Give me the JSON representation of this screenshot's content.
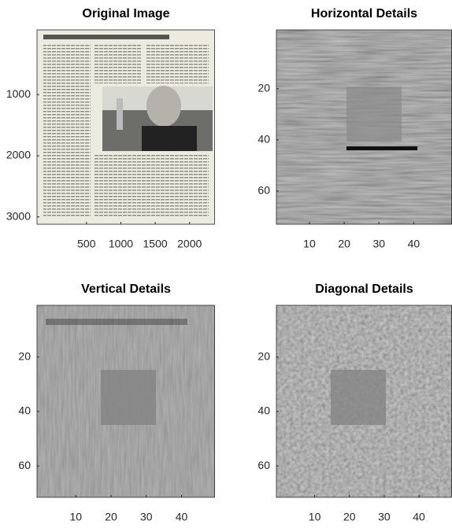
{
  "chart_data": [
    {
      "type": "image",
      "title": "Original Image",
      "xlim": [
        -220,
        2370
      ],
      "ylim": [
        -60,
        3120
      ],
      "xticks": [
        500,
        1000,
        1500,
        2000
      ],
      "yticks": [
        1000,
        2000,
        3000
      ]
    },
    {
      "type": "image",
      "title": "Horizontal Details",
      "xlim": [
        0.5,
        51
      ],
      "ylim": [
        -3,
        73
      ],
      "xticks": [
        10,
        20,
        30,
        40
      ],
      "yticks": [
        20,
        40,
        60
      ]
    },
    {
      "type": "image",
      "title": "Vertical Details",
      "xlim": [
        -1,
        49.5
      ],
      "ylim": [
        1,
        71.5
      ],
      "xticks": [
        10,
        20,
        30,
        40
      ],
      "yticks": [
        20,
        40,
        60
      ]
    },
    {
      "type": "image",
      "title": "Diagonal Details",
      "xlim": [
        -1,
        49.5
      ],
      "ylim": [
        1,
        71.5
      ],
      "xticks": [
        10,
        20,
        30,
        40
      ],
      "yticks": [
        20,
        40,
        60
      ]
    }
  ]
}
